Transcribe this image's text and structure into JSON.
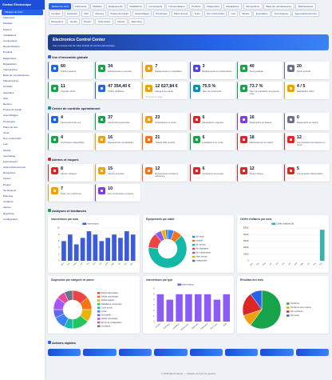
{
  "sidebar": {
    "title": "Gestion Électronique",
    "items": [
      "Tableau de bord",
      "Fabricants",
      "Modèles",
      "Paniers",
      "Installations",
      "Composants",
      "Nomenclatures",
      "Produits",
      "Diagnostics",
      "Réparations",
      "Interventions",
      "Base de connaissances",
      "Maintenances",
      "Contrats",
      "Garanties",
      "SAV",
      "Retours",
      "Postes de travail",
      "Assemblages",
      "Prototypes",
      "Plans de test",
      "Tests",
      "Non conformités",
      "Lots",
      "Stocks",
      "Inventaires",
      "Fournisseurs",
      "Approvisionnements",
      "Réceptions",
      "Ventes",
      "Projets",
      "Techniciens",
      "Planning",
      "Incidents",
      "Alertes",
      "Reporting",
      "Configuration"
    ]
  },
  "nav": {
    "tabs": [
      "Tableau de bord",
      "Fabricants",
      "Modèles",
      "Équipements",
      "Installations",
      "Composants",
      "Nomenclatures",
      "Produits",
      "Diagnostics",
      "Réparations",
      "Interventions",
      "Base de connaissances",
      "Maintenances",
      "Contrats",
      "Garanties",
      "SAV",
      "Retours",
      "Postes de travail",
      "Assemblages",
      "Prototypes",
      "Plans de test",
      "Tests",
      "Non conformités",
      "Lots",
      "Stocks",
      "Inventaires",
      "Fournisseurs",
      "Approvisionnements",
      "Réceptions",
      "Ventes",
      "Projets",
      "Techniciens",
      "Alertes",
      "Reporting"
    ]
  },
  "banner": {
    "title": "Electronics Control Center",
    "subtitle": "Vue en temps réel de votre activité de service électronique"
  },
  "sections": [
    {
      "title": "Vue d'ensemble globale",
      "cards": [
        {
          "value": 60,
          "label": "Articles paniers"
        },
        {
          "value": 34,
          "label": "Équipements en service"
        },
        {
          "value": 7,
          "label": "Équipements en réparation"
        },
        {
          "value": 3,
          "label": "Équipements en maintenance"
        },
        {
          "value": 40,
          "label": "Sous garantie"
        },
        {
          "value": 20,
          "label": "Stock général"
        },
        {
          "value": 11,
          "label": "Contrats actifs"
        },
        {
          "value": "47 354,40 €",
          "label": "Chiffre d'affaires"
        },
        {
          "value": "12 627,84 €",
          "label": "Marge brute totale",
          "note": "27 % taux de marge"
        },
        {
          "value": "75.5 %",
          "label": "Taux de conformité"
        },
        {
          "value": "73.7 %",
          "label": "Taux de réparation au premier coup"
        },
        {
          "value": "4 / 5",
          "label": "Satisfaction client"
        }
      ]
    },
    {
      "title": "Centre de contrôle opérationnel",
      "cards": [
        {
          "value": 4,
          "label": "Interventions du jour"
        },
        {
          "value": 37,
          "label": "Interventions ouvertes"
        },
        {
          "value": 23,
          "label": "Réparations en cours"
        },
        {
          "value": 6,
          "label": "Réparations urgentes"
        },
        {
          "value": 16,
          "label": "Diagnostics en attente"
        },
        {
          "value": 0,
          "label": "Diagnostics en retard"
        },
        {
          "value": 4,
          "label": "Techniciens disponibles"
        },
        {
          "value": 16,
          "label": "Équipements immobilisés"
        },
        {
          "value": 21,
          "label": "Tickets SAV ouverts"
        },
        {
          "value": 6,
          "label": "Installations en cours"
        },
        {
          "value": 18,
          "label": "Maintenances en retard"
        },
        {
          "value": 12,
          "label": "Commandes fournisseurs en cours"
        }
      ]
    },
    {
      "title": "Alertes et risques",
      "cards": [
        {
          "value": 8,
          "label": "Alertes critiques"
        },
        {
          "value": 15,
          "label": "Alertes ouvertes"
        },
        {
          "value": 12,
          "label": "Équipements arrivant à échéance"
        },
        {
          "value": 6,
          "label": "Contrats à renouveler"
        },
        {
          "value": 12,
          "label": "Stock critique"
        },
        {
          "value": 5,
          "label": "Composants indisponibles"
        },
        {
          "value": 7,
          "label": "Tests non conformes"
        },
        {
          "value": 10,
          "label": "Non conformités ouvertes"
        }
      ]
    }
  ],
  "analytics_title": "Analyses et tendances",
  "chart_data": [
    {
      "type": "bar",
      "title": "Interventions par mois",
      "categories": [
        "janv.",
        "févr.",
        "mars",
        "avr.",
        "mai",
        "juin",
        "juil.",
        "août",
        "sept.",
        "oct.",
        "nov.",
        "déc."
      ],
      "series": [
        {
          "name": "Interventions",
          "color": "#3b5bdb",
          "values": [
            6,
            8,
            5,
            7,
            9,
            8,
            6,
            7,
            8,
            7,
            9,
            8
          ]
        }
      ],
      "ylim": [
        0,
        10
      ],
      "yticks": [
        0,
        2,
        4,
        6,
        8,
        10
      ],
      "grid": true
    },
    {
      "type": "doughnut",
      "title": "Équipements par statut",
      "categories": [
        "En stock",
        "Installé",
        "En service",
        "En réparation",
        "En maintenance",
        "Hors service",
        "Indisponible"
      ],
      "values": [
        3,
        4,
        34,
        7,
        3,
        2,
        1
      ],
      "colors": [
        "#3b82f6",
        "#f97316",
        "#14b8a6",
        "#ef4444",
        "#8b5cf6",
        "#eab308",
        "#64748b"
      ],
      "legend": "right"
    },
    {
      "type": "bar",
      "title": "Chiffre d'affaires par mois",
      "categories": [
        "janv.",
        "févr.",
        "mars",
        "avr.",
        "mai",
        "juin",
        "juil.",
        "août",
        "sept.",
        "oct.",
        "nov.",
        "déc."
      ],
      "series": [
        {
          "name": "Chiffre d'affaires (€)",
          "color": "#38b2ac",
          "values": [
            0,
            0,
            0,
            0,
            0,
            0,
            0,
            0,
            0,
            0,
            0,
            47354
          ]
        }
      ],
      "ylim": [
        0,
        50000
      ],
      "yticks": [
        0,
        10000,
        20000,
        30000,
        40000,
        50000
      ],
      "grid": true
    },
    {
      "type": "doughnut",
      "title": "Diagnostics par catégorie de panne",
      "categories": [
        "Défaut alimentation",
        "Défaut connectique",
        "Défaut logiciel",
        "Défaillance composant",
        "Court-circuit",
        "Usure",
        "Surchauffe",
        "Défaut mécanique",
        "Erreur de configuration",
        "Oxydation"
      ],
      "values": [
        4,
        3,
        3,
        4,
        2,
        3,
        2,
        3,
        2,
        2
      ],
      "colors": [
        "#ef4444",
        "#f97316",
        "#eab308",
        "#22c55e",
        "#14b8a6",
        "#3b82f6",
        "#6366f1",
        "#a855f7",
        "#ec4899",
        "#64748b"
      ],
      "legend": "right"
    },
    {
      "type": "bar",
      "title": "Interventions par type",
      "categories": [
        "Curative",
        "Préventive",
        "Installation",
        "Maintenance",
        "Diagnostic",
        "Réparation",
        "Mise à jour",
        "Audit"
      ],
      "series": [
        {
          "name": "Interventions",
          "color": "#8b5cf6",
          "values": [
            5,
            4,
            5,
            5,
            5,
            5,
            4,
            5
          ]
        }
      ],
      "ylim": [
        0,
        6
      ],
      "yticks": [
        0,
        1,
        2,
        3,
        4,
        5,
        6
      ],
      "grid": true
    },
    {
      "type": "pie",
      "title": "Résultats des tests",
      "categories": [
        "Conforme",
        "Conforme avec réserve",
        "Non conforme",
        "Non testé"
      ],
      "values": [
        60,
        10,
        20,
        10
      ],
      "colors": [
        "#16a34a",
        "#f59e0b",
        "#dc2626",
        "#2563eb"
      ],
      "legend": "right"
    }
  ],
  "actions": {
    "title": "Actions rapides"
  },
  "footer": "© 2025 Électronique — Tableau de bord de gestion"
}
